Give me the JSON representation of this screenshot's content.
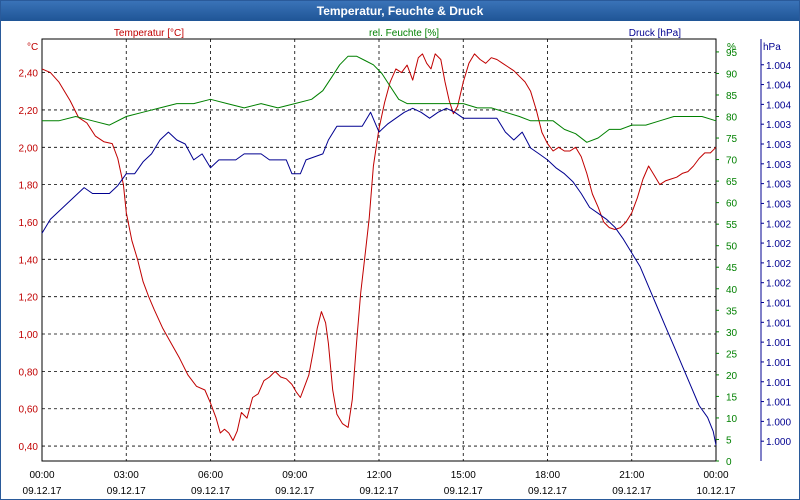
{
  "window": {
    "title": "Temperatur, Feuchte & Druck"
  },
  "chart_data": {
    "type": "line",
    "title": "Temperatur, Feuchte & Druck",
    "x_ticks": [
      {
        "hours": 0,
        "time": "00:00",
        "date": "09.12.17"
      },
      {
        "hours": 3,
        "time": "03:00",
        "date": "09.12.17"
      },
      {
        "hours": 6,
        "time": "06:00",
        "date": "09.12.17"
      },
      {
        "hours": 9,
        "time": "09:00",
        "date": "09.12.17"
      },
      {
        "hours": 12,
        "time": "12:00",
        "date": "09.12.17"
      },
      {
        "hours": 15,
        "time": "15:00",
        "date": "09.12.17"
      },
      {
        "hours": 18,
        "time": "18:00",
        "date": "09.12.17"
      },
      {
        "hours": 21,
        "time": "21:00",
        "date": "09.12.17"
      },
      {
        "hours": 24,
        "time": "00:00",
        "date": "10.12.17"
      }
    ],
    "xlim": [
      0,
      24
    ],
    "grid": true,
    "axes": {
      "temperature": {
        "unit_label": "°C",
        "range": [
          0.32,
          2.58
        ],
        "ticks": [
          0.4,
          0.6,
          0.8,
          1.0,
          1.2,
          1.4,
          1.6,
          1.8,
          2.0,
          2.2,
          2.4
        ],
        "tick_labels": [
          "0,40",
          "0,60",
          "0,80",
          "1,00",
          "1,20",
          "1,40",
          "1,60",
          "1,80",
          "2,00",
          "2,20",
          "2,40"
        ],
        "color": "#c00000"
      },
      "humidity": {
        "unit_label": "%",
        "range": [
          0,
          98
        ],
        "ticks": [
          0,
          5,
          10,
          15,
          20,
          25,
          30,
          35,
          40,
          45,
          50,
          55,
          60,
          65,
          70,
          75,
          80,
          85,
          90,
          95
        ],
        "tick_labels": [
          "0",
          "5",
          "10",
          "15",
          "20",
          "25",
          "30",
          "35",
          "40",
          "45",
          "50",
          "55",
          "60",
          "65",
          "70",
          "75",
          "80",
          "85",
          "90",
          "95"
        ],
        "color": "#008000"
      },
      "pressure": {
        "unit_label": "hPa",
        "range": [
          0.0,
          21.3
        ],
        "ticks": [
          1,
          2,
          3,
          4,
          5,
          6,
          7,
          8,
          9,
          10,
          11,
          12,
          13,
          14,
          15,
          16,
          17,
          18,
          19,
          20
        ],
        "tick_labels": [
          "1.000",
          "1.000",
          "1.001",
          "1.001",
          "1.001",
          "1.001",
          "1.001",
          "1.001",
          "1.002",
          "1.002",
          "1.002",
          "1.002",
          "1.003",
          "1.003",
          "1.003",
          "1.003",
          "1.003",
          "1.004",
          "1.004",
          "1.004"
        ],
        "color": "#000090"
      }
    },
    "series": [
      {
        "name": "Temperatur [°C]",
        "axis": "temperature",
        "color": "#c00000",
        "points": [
          [
            0,
            2.42
          ],
          [
            0.3,
            2.4
          ],
          [
            0.6,
            2.35
          ],
          [
            1.0,
            2.25
          ],
          [
            1.3,
            2.16
          ],
          [
            1.6,
            2.13
          ],
          [
            1.9,
            2.06
          ],
          [
            2.2,
            2.03
          ],
          [
            2.5,
            2.02
          ],
          [
            2.7,
            1.94
          ],
          [
            2.9,
            1.8
          ],
          [
            3.0,
            1.65
          ],
          [
            3.2,
            1.5
          ],
          [
            3.4,
            1.4
          ],
          [
            3.6,
            1.28
          ],
          [
            3.8,
            1.2
          ],
          [
            4.0,
            1.13
          ],
          [
            4.3,
            1.03
          ],
          [
            4.6,
            0.95
          ],
          [
            4.9,
            0.87
          ],
          [
            5.2,
            0.78
          ],
          [
            5.5,
            0.72
          ],
          [
            5.8,
            0.7
          ],
          [
            6.0,
            0.63
          ],
          [
            6.2,
            0.55
          ],
          [
            6.35,
            0.47
          ],
          [
            6.5,
            0.49
          ],
          [
            6.65,
            0.47
          ],
          [
            6.8,
            0.43
          ],
          [
            6.95,
            0.48
          ],
          [
            7.1,
            0.58
          ],
          [
            7.3,
            0.55
          ],
          [
            7.5,
            0.66
          ],
          [
            7.7,
            0.68
          ],
          [
            7.9,
            0.75
          ],
          [
            8.1,
            0.77
          ],
          [
            8.3,
            0.8
          ],
          [
            8.5,
            0.77
          ],
          [
            8.7,
            0.76
          ],
          [
            8.9,
            0.73
          ],
          [
            9.05,
            0.69
          ],
          [
            9.2,
            0.66
          ],
          [
            9.35,
            0.72
          ],
          [
            9.5,
            0.78
          ],
          [
            9.65,
            0.9
          ],
          [
            9.8,
            1.03
          ],
          [
            9.95,
            1.12
          ],
          [
            10.1,
            1.06
          ],
          [
            10.2,
            0.95
          ],
          [
            10.35,
            0.7
          ],
          [
            10.5,
            0.57
          ],
          [
            10.7,
            0.52
          ],
          [
            10.9,
            0.5
          ],
          [
            11.05,
            0.65
          ],
          [
            11.2,
            0.95
          ],
          [
            11.35,
            1.22
          ],
          [
            11.5,
            1.42
          ],
          [
            11.65,
            1.62
          ],
          [
            11.8,
            1.9
          ],
          [
            12.0,
            2.1
          ],
          [
            12.2,
            2.24
          ],
          [
            12.4,
            2.35
          ],
          [
            12.6,
            2.42
          ],
          [
            12.8,
            2.4
          ],
          [
            13.0,
            2.44
          ],
          [
            13.2,
            2.36
          ],
          [
            13.4,
            2.48
          ],
          [
            13.55,
            2.5
          ],
          [
            13.7,
            2.45
          ],
          [
            13.85,
            2.42
          ],
          [
            14.0,
            2.5
          ],
          [
            14.2,
            2.47
          ],
          [
            14.35,
            2.35
          ],
          [
            14.5,
            2.25
          ],
          [
            14.65,
            2.18
          ],
          [
            14.8,
            2.22
          ],
          [
            15.0,
            2.35
          ],
          [
            15.2,
            2.45
          ],
          [
            15.4,
            2.5
          ],
          [
            15.6,
            2.47
          ],
          [
            15.8,
            2.45
          ],
          [
            16.0,
            2.48
          ],
          [
            16.2,
            2.47
          ],
          [
            16.4,
            2.45
          ],
          [
            16.6,
            2.43
          ],
          [
            16.8,
            2.41
          ],
          [
            17.0,
            2.38
          ],
          [
            17.2,
            2.35
          ],
          [
            17.4,
            2.3
          ],
          [
            17.6,
            2.2
          ],
          [
            17.8,
            2.08
          ],
          [
            18.0,
            2.02
          ],
          [
            18.2,
            1.98
          ],
          [
            18.4,
            2.0
          ],
          [
            18.6,
            1.98
          ],
          [
            18.8,
            1.98
          ],
          [
            19.0,
            2.0
          ],
          [
            19.2,
            1.95
          ],
          [
            19.4,
            1.86
          ],
          [
            19.6,
            1.75
          ],
          [
            19.8,
            1.68
          ],
          [
            20.0,
            1.6
          ],
          [
            20.2,
            1.57
          ],
          [
            20.4,
            1.56
          ],
          [
            20.6,
            1.57
          ],
          [
            20.8,
            1.6
          ],
          [
            21.0,
            1.65
          ],
          [
            21.2,
            1.73
          ],
          [
            21.4,
            1.83
          ],
          [
            21.6,
            1.9
          ],
          [
            21.8,
            1.85
          ],
          [
            22.0,
            1.8
          ],
          [
            22.2,
            1.82
          ],
          [
            22.4,
            1.83
          ],
          [
            22.6,
            1.84
          ],
          [
            22.8,
            1.86
          ],
          [
            23.0,
            1.87
          ],
          [
            23.2,
            1.9
          ],
          [
            23.4,
            1.94
          ],
          [
            23.6,
            1.97
          ],
          [
            23.8,
            1.97
          ],
          [
            24.0,
            2.0
          ]
        ]
      },
      {
        "name": "rel. Feuchte [%]",
        "axis": "humidity",
        "color": "#008000",
        "points": [
          [
            0,
            79
          ],
          [
            0.6,
            79
          ],
          [
            1.2,
            80
          ],
          [
            1.8,
            79
          ],
          [
            2.4,
            78
          ],
          [
            3.0,
            80
          ],
          [
            3.6,
            81
          ],
          [
            4.2,
            82
          ],
          [
            4.8,
            83
          ],
          [
            5.4,
            83
          ],
          [
            6.0,
            84
          ],
          [
            6.6,
            83
          ],
          [
            7.2,
            82
          ],
          [
            7.8,
            83
          ],
          [
            8.4,
            82
          ],
          [
            9.0,
            83
          ],
          [
            9.6,
            84
          ],
          [
            10.0,
            86
          ],
          [
            10.3,
            89
          ],
          [
            10.6,
            92
          ],
          [
            10.9,
            94
          ],
          [
            11.2,
            94
          ],
          [
            11.5,
            93
          ],
          [
            11.8,
            92
          ],
          [
            12.1,
            90
          ],
          [
            12.4,
            87
          ],
          [
            12.7,
            84
          ],
          [
            13.0,
            83
          ],
          [
            13.5,
            83
          ],
          [
            14.0,
            83
          ],
          [
            14.5,
            83
          ],
          [
            15.0,
            83
          ],
          [
            15.5,
            82
          ],
          [
            16.0,
            82
          ],
          [
            16.5,
            81
          ],
          [
            17.0,
            80
          ],
          [
            17.4,
            79
          ],
          [
            17.8,
            79
          ],
          [
            18.2,
            79
          ],
          [
            18.6,
            77
          ],
          [
            19.0,
            76
          ],
          [
            19.4,
            74
          ],
          [
            19.8,
            75
          ],
          [
            20.2,
            77
          ],
          [
            20.6,
            77
          ],
          [
            21.0,
            78
          ],
          [
            21.5,
            78
          ],
          [
            22.0,
            79
          ],
          [
            22.5,
            80
          ],
          [
            23.0,
            80
          ],
          [
            23.5,
            80
          ],
          [
            24.0,
            79
          ]
        ]
      },
      {
        "name": "Druck [hPa]",
        "axis": "pressure",
        "color": "#000090",
        "points": [
          [
            0,
            11.5
          ],
          [
            0.3,
            12.2
          ],
          [
            0.6,
            12.6
          ],
          [
            0.9,
            13.0
          ],
          [
            1.2,
            13.4
          ],
          [
            1.5,
            13.8
          ],
          [
            1.8,
            13.5
          ],
          [
            2.4,
            13.5
          ],
          [
            2.7,
            13.9
          ],
          [
            3.0,
            14.5
          ],
          [
            3.3,
            14.5
          ],
          [
            3.6,
            15.1
          ],
          [
            3.9,
            15.5
          ],
          [
            4.2,
            16.2
          ],
          [
            4.5,
            16.6
          ],
          [
            4.8,
            16.2
          ],
          [
            5.1,
            16.0
          ],
          [
            5.4,
            15.2
          ],
          [
            5.7,
            15.5
          ],
          [
            6.0,
            14.8
          ],
          [
            6.3,
            15.2
          ],
          [
            6.9,
            15.2
          ],
          [
            7.2,
            15.5
          ],
          [
            7.8,
            15.5
          ],
          [
            8.1,
            15.2
          ],
          [
            8.7,
            15.2
          ],
          [
            8.9,
            14.5
          ],
          [
            9.2,
            14.5
          ],
          [
            9.4,
            15.2
          ],
          [
            10.0,
            15.5
          ],
          [
            10.2,
            16.2
          ],
          [
            10.5,
            16.9
          ],
          [
            11.4,
            16.9
          ],
          [
            11.7,
            17.6
          ],
          [
            12.0,
            16.6
          ],
          [
            12.3,
            17.0
          ],
          [
            12.6,
            17.3
          ],
          [
            12.9,
            17.6
          ],
          [
            13.2,
            17.8
          ],
          [
            13.5,
            17.6
          ],
          [
            13.8,
            17.3
          ],
          [
            14.1,
            17.6
          ],
          [
            14.4,
            17.8
          ],
          [
            14.7,
            17.6
          ],
          [
            15.0,
            17.3
          ],
          [
            16.2,
            17.3
          ],
          [
            16.5,
            16.6
          ],
          [
            16.8,
            16.2
          ],
          [
            17.1,
            16.6
          ],
          [
            17.4,
            15.8
          ],
          [
            17.7,
            15.5
          ],
          [
            18.0,
            15.2
          ],
          [
            18.3,
            14.8
          ],
          [
            18.6,
            14.5
          ],
          [
            18.9,
            14.1
          ],
          [
            19.2,
            13.5
          ],
          [
            19.5,
            12.8
          ],
          [
            19.8,
            12.5
          ],
          [
            20.1,
            12.2
          ],
          [
            20.4,
            11.8
          ],
          [
            20.7,
            11.2
          ],
          [
            21.0,
            10.5
          ],
          [
            21.3,
            9.8
          ],
          [
            21.6,
            8.8
          ],
          [
            21.9,
            7.8
          ],
          [
            22.2,
            6.8
          ],
          [
            22.5,
            5.8
          ],
          [
            22.8,
            4.8
          ],
          [
            23.1,
            3.8
          ],
          [
            23.4,
            2.8
          ],
          [
            23.7,
            2.2
          ],
          [
            23.9,
            1.5
          ],
          [
            24.0,
            0.8
          ]
        ]
      }
    ]
  }
}
